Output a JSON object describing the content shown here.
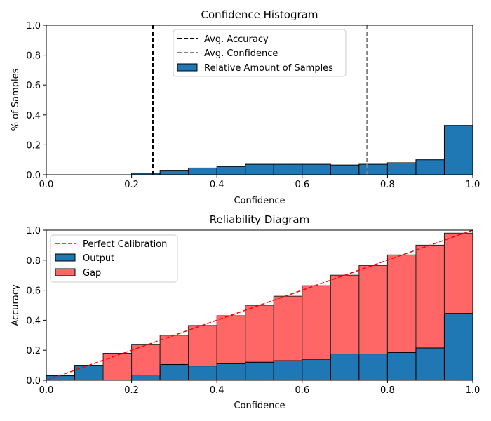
{
  "chart_data": [
    {
      "type": "bar",
      "title": "Confidence Histogram",
      "xlabel": "Confidence",
      "ylabel": "% of Samples",
      "xlim": [
        0,
        1
      ],
      "ylim": [
        0,
        1
      ],
      "xticks": [
        "0.0",
        "0.2",
        "0.4",
        "0.6",
        "0.8",
        "1.0"
      ],
      "yticks": [
        "0.0",
        "0.2",
        "0.4",
        "0.6",
        "0.8",
        "1.0"
      ],
      "bin_edges": [
        0,
        0.0667,
        0.1333,
        0.2,
        0.2667,
        0.3333,
        0.4,
        0.4667,
        0.5333,
        0.6,
        0.6667,
        0.7333,
        0.8,
        0.8667,
        0.9333,
        1.0
      ],
      "values": [
        0.0,
        0.0,
        0.0,
        0.01,
        0.03,
        0.045,
        0.055,
        0.07,
        0.07,
        0.07,
        0.065,
        0.07,
        0.08,
        0.1,
        0.33
      ],
      "avg_accuracy": 0.25,
      "avg_confidence": 0.752,
      "legend_position": "top-center",
      "legend": {
        "avg_accuracy": "Avg. Accuracy",
        "avg_confidence": "Avg. Confidence",
        "samples": "Relative Amount of Samples"
      },
      "colors": {
        "bar": "#1f77b4",
        "accuracy_line": "#000000",
        "confidence_line": "#808080"
      }
    },
    {
      "type": "bar",
      "title": "Reliability Diagram",
      "xlabel": "Confidence",
      "ylabel": "Accuracy",
      "xlim": [
        0,
        1
      ],
      "ylim": [
        0,
        1
      ],
      "xticks": [
        "0.0",
        "0.2",
        "0.4",
        "0.6",
        "0.8",
        "1.0"
      ],
      "yticks": [
        "0.0",
        "0.2",
        "0.4",
        "0.6",
        "0.8",
        "1.0"
      ],
      "bin_edges": [
        0,
        0.0667,
        0.1333,
        0.2,
        0.2667,
        0.3333,
        0.4,
        0.4667,
        0.5333,
        0.6,
        0.6667,
        0.7333,
        0.8,
        0.8667,
        0.9333,
        1.0
      ],
      "output": [
        0.03,
        0.1,
        0.0,
        0.035,
        0.105,
        0.095,
        0.11,
        0.12,
        0.13,
        0.14,
        0.175,
        0.175,
        0.185,
        0.215,
        0.445
      ],
      "gap_top": [
        0.03,
        0.1,
        0.18,
        0.24,
        0.3,
        0.365,
        0.43,
        0.5,
        0.56,
        0.63,
        0.7,
        0.765,
        0.835,
        0.9,
        0.98
      ],
      "legend_position": "top-left",
      "legend": {
        "perfect": "Perfect Calibration",
        "output": "Output",
        "gap": "Gap"
      },
      "colors": {
        "output": "#1f77b4",
        "gap": "#ff6666",
        "perfect": "#ff0000"
      }
    }
  ]
}
